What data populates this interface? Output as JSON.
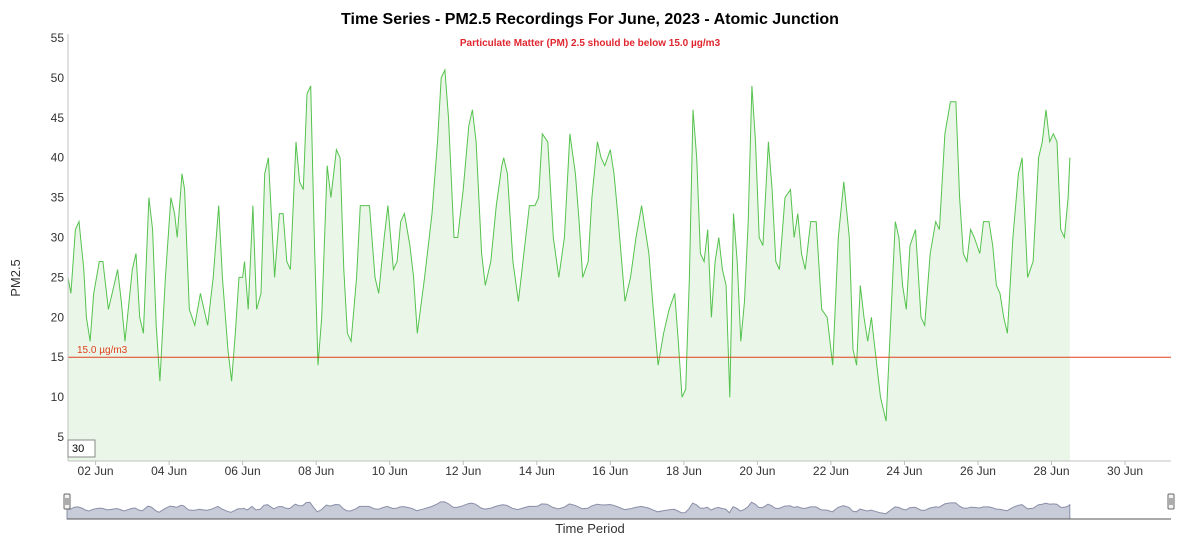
{
  "chart_data": {
    "type": "area",
    "title": "Time Series - PM2.5 Recordings For June, 2023 - Atomic Junction",
    "subtitle": "Particulate Matter (PM) 2.5 should be below 15.0 µg/m3",
    "ylabel": "PM2.5",
    "xlabel": "Time Period",
    "ylim": [
      2,
      55
    ],
    "yticks": [
      5,
      10,
      15,
      20,
      25,
      30,
      35,
      40,
      45,
      50,
      55
    ],
    "xlim": [
      1.25,
      31.25
    ],
    "xticks": [
      {
        "day": 2,
        "label": "02 Jun"
      },
      {
        "day": 4,
        "label": "04 Jun"
      },
      {
        "day": 6,
        "label": "06 Jun"
      },
      {
        "day": 8,
        "label": "08 Jun"
      },
      {
        "day": 10,
        "label": "10 Jun"
      },
      {
        "day": 12,
        "label": "12 Jun"
      },
      {
        "day": 14,
        "label": "14 Jun"
      },
      {
        "day": 16,
        "label": "16 Jun"
      },
      {
        "day": 18,
        "label": "18 Jun"
      },
      {
        "day": 20,
        "label": "20 Jun"
      },
      {
        "day": 22,
        "label": "22 Jun"
      },
      {
        "day": 24,
        "label": "24 Jun"
      },
      {
        "day": 26,
        "label": "26 Jun"
      },
      {
        "day": 28,
        "label": "28 Jun"
      },
      {
        "day": 30,
        "label": "30 Jun"
      }
    ],
    "threshold": {
      "value": 15,
      "label": "15.0 µg/m3",
      "color": "#e0401e"
    },
    "range_selector_value": "30",
    "grid": false,
    "legend": "none",
    "series": [
      {
        "name": "PM2.5",
        "color": "#55c24e",
        "fill": "#eaf7e8",
        "points": [
          [
            1.25,
            25
          ],
          [
            1.33,
            23
          ],
          [
            1.45,
            31
          ],
          [
            1.55,
            32
          ],
          [
            1.68,
            26
          ],
          [
            1.75,
            20
          ],
          [
            1.85,
            17
          ],
          [
            1.95,
            23
          ],
          [
            2.1,
            27
          ],
          [
            2.2,
            27
          ],
          [
            2.35,
            21
          ],
          [
            2.5,
            24
          ],
          [
            2.6,
            26
          ],
          [
            2.7,
            22
          ],
          [
            2.8,
            17
          ],
          [
            3.0,
            26
          ],
          [
            3.1,
            28
          ],
          [
            3.2,
            20
          ],
          [
            3.3,
            18
          ],
          [
            3.45,
            35
          ],
          [
            3.55,
            31
          ],
          [
            3.65,
            19
          ],
          [
            3.75,
            12
          ],
          [
            3.9,
            25
          ],
          [
            4.05,
            35
          ],
          [
            4.15,
            33
          ],
          [
            4.22,
            30
          ],
          [
            4.35,
            38
          ],
          [
            4.42,
            36
          ],
          [
            4.55,
            21
          ],
          [
            4.7,
            19
          ],
          [
            4.85,
            23
          ],
          [
            4.95,
            21
          ],
          [
            5.05,
            19
          ],
          [
            5.2,
            25
          ],
          [
            5.35,
            34
          ],
          [
            5.45,
            25
          ],
          [
            5.6,
            16
          ],
          [
            5.7,
            12
          ],
          [
            5.8,
            18
          ],
          [
            5.9,
            25
          ],
          [
            6.0,
            25
          ],
          [
            6.05,
            27
          ],
          [
            6.15,
            21
          ],
          [
            6.28,
            34
          ],
          [
            6.38,
            21
          ],
          [
            6.5,
            23
          ],
          [
            6.6,
            38
          ],
          [
            6.7,
            40
          ],
          [
            6.8,
            31
          ],
          [
            6.87,
            25
          ],
          [
            7.0,
            33
          ],
          [
            7.1,
            33
          ],
          [
            7.2,
            27
          ],
          [
            7.3,
            26
          ],
          [
            7.45,
            42
          ],
          [
            7.55,
            37
          ],
          [
            7.65,
            36
          ],
          [
            7.75,
            48
          ],
          [
            7.85,
            49
          ],
          [
            7.95,
            30
          ],
          [
            8.05,
            14
          ],
          [
            8.15,
            20
          ],
          [
            8.3,
            39
          ],
          [
            8.4,
            35
          ],
          [
            8.55,
            41
          ],
          [
            8.65,
            40
          ],
          [
            8.75,
            26
          ],
          [
            8.85,
            18
          ],
          [
            8.95,
            17
          ],
          [
            9.1,
            25
          ],
          [
            9.2,
            34
          ],
          [
            9.35,
            34
          ],
          [
            9.45,
            34
          ],
          [
            9.5,
            31
          ],
          [
            9.6,
            25
          ],
          [
            9.7,
            23
          ],
          [
            9.85,
            30
          ],
          [
            9.95,
            34
          ],
          [
            10.1,
            26
          ],
          [
            10.2,
            27
          ],
          [
            10.3,
            32
          ],
          [
            10.4,
            33
          ],
          [
            10.55,
            29
          ],
          [
            10.65,
            25
          ],
          [
            10.75,
            18
          ],
          [
            10.95,
            25
          ],
          [
            11.15,
            33
          ],
          [
            11.3,
            42
          ],
          [
            11.4,
            50
          ],
          [
            11.5,
            51
          ],
          [
            11.6,
            45
          ],
          [
            11.75,
            30
          ],
          [
            11.85,
            30
          ],
          [
            12.0,
            36
          ],
          [
            12.15,
            44
          ],
          [
            12.25,
            46
          ],
          [
            12.35,
            42
          ],
          [
            12.5,
            28
          ],
          [
            12.6,
            24
          ],
          [
            12.75,
            27
          ],
          [
            12.9,
            34
          ],
          [
            13.05,
            39
          ],
          [
            13.1,
            40
          ],
          [
            13.2,
            38
          ],
          [
            13.35,
            27
          ],
          [
            13.5,
            22
          ],
          [
            13.7,
            30
          ],
          [
            13.8,
            34
          ],
          [
            13.95,
            34
          ],
          [
            14.05,
            35
          ],
          [
            14.15,
            43
          ],
          [
            14.3,
            42
          ],
          [
            14.45,
            30
          ],
          [
            14.6,
            25
          ],
          [
            14.75,
            30
          ],
          [
            14.9,
            43
          ],
          [
            15.05,
            38
          ],
          [
            15.15,
            32
          ],
          [
            15.25,
            25
          ],
          [
            15.4,
            27
          ],
          [
            15.5,
            35
          ],
          [
            15.65,
            42
          ],
          [
            15.75,
            40
          ],
          [
            15.85,
            39
          ],
          [
            16.0,
            41
          ],
          [
            16.1,
            38
          ],
          [
            16.2,
            33
          ],
          [
            16.4,
            22
          ],
          [
            16.55,
            25
          ],
          [
            16.7,
            30
          ],
          [
            16.85,
            34
          ],
          [
            16.95,
            31
          ],
          [
            17.05,
            28
          ],
          [
            17.15,
            22
          ],
          [
            17.3,
            14
          ],
          [
            17.45,
            18
          ],
          [
            17.6,
            21
          ],
          [
            17.75,
            23
          ],
          [
            17.85,
            17
          ],
          [
            17.95,
            10
          ],
          [
            18.05,
            11
          ],
          [
            18.15,
            25
          ],
          [
            18.25,
            46
          ],
          [
            18.35,
            40
          ],
          [
            18.45,
            28
          ],
          [
            18.55,
            27
          ],
          [
            18.65,
            31
          ],
          [
            18.75,
            20
          ],
          [
            18.85,
            27
          ],
          [
            18.95,
            30
          ],
          [
            19.05,
            26
          ],
          [
            19.15,
            24
          ],
          [
            19.25,
            10
          ],
          [
            19.35,
            33
          ],
          [
            19.45,
            27
          ],
          [
            19.55,
            17
          ],
          [
            19.65,
            22
          ],
          [
            19.75,
            32
          ],
          [
            19.85,
            49
          ],
          [
            19.95,
            42
          ],
          [
            20.05,
            30
          ],
          [
            20.15,
            29
          ],
          [
            20.3,
            42
          ],
          [
            20.4,
            36
          ],
          [
            20.5,
            27
          ],
          [
            20.6,
            26
          ],
          [
            20.75,
            35
          ],
          [
            20.9,
            36
          ],
          [
            21.0,
            30
          ],
          [
            21.1,
            33
          ],
          [
            21.2,
            28
          ],
          [
            21.3,
            26
          ],
          [
            21.45,
            32
          ],
          [
            21.6,
            32
          ],
          [
            21.75,
            21
          ],
          [
            21.9,
            20
          ],
          [
            22.05,
            14
          ],
          [
            22.2,
            30
          ],
          [
            22.35,
            37
          ],
          [
            22.5,
            30
          ],
          [
            22.6,
            16
          ],
          [
            22.7,
            14
          ],
          [
            22.8,
            24
          ],
          [
            22.9,
            20
          ],
          [
            23.0,
            17
          ],
          [
            23.1,
            20
          ],
          [
            23.2,
            16
          ],
          [
            23.35,
            10
          ],
          [
            23.5,
            7
          ],
          [
            23.65,
            22
          ],
          [
            23.75,
            32
          ],
          [
            23.85,
            30
          ],
          [
            23.95,
            24
          ],
          [
            24.05,
            21
          ],
          [
            24.15,
            29
          ],
          [
            24.3,
            31
          ],
          [
            24.45,
            20
          ],
          [
            24.55,
            19
          ],
          [
            24.7,
            28
          ],
          [
            24.85,
            32
          ],
          [
            24.95,
            31
          ],
          [
            25.1,
            43
          ],
          [
            25.25,
            47
          ],
          [
            25.4,
            47
          ],
          [
            25.5,
            35
          ],
          [
            25.6,
            28
          ],
          [
            25.7,
            27
          ],
          [
            25.8,
            31
          ],
          [
            25.9,
            30
          ],
          [
            26.05,
            28
          ],
          [
            26.15,
            32
          ],
          [
            26.3,
            32
          ],
          [
            26.4,
            29
          ],
          [
            26.5,
            24
          ],
          [
            26.6,
            23
          ],
          [
            26.7,
            20
          ],
          [
            26.8,
            18
          ],
          [
            26.95,
            30
          ],
          [
            27.1,
            38
          ],
          [
            27.2,
            40
          ],
          [
            27.35,
            25
          ],
          [
            27.5,
            27
          ],
          [
            27.65,
            40
          ],
          [
            27.75,
            42
          ],
          [
            27.85,
            46
          ],
          [
            27.95,
            42
          ],
          [
            28.05,
            43
          ],
          [
            28.15,
            42
          ],
          [
            28.25,
            31
          ],
          [
            28.35,
            30
          ],
          [
            28.45,
            35
          ],
          [
            28.5,
            40
          ]
        ]
      }
    ]
  },
  "colors": {
    "line": "#55c24e",
    "area_fill": "#eaf7e8",
    "threshold": "#e0401e",
    "subtitle": "#e0262e",
    "navigator_fill": "#c8cbd8",
    "navigator_line": "#8a8fa8"
  }
}
